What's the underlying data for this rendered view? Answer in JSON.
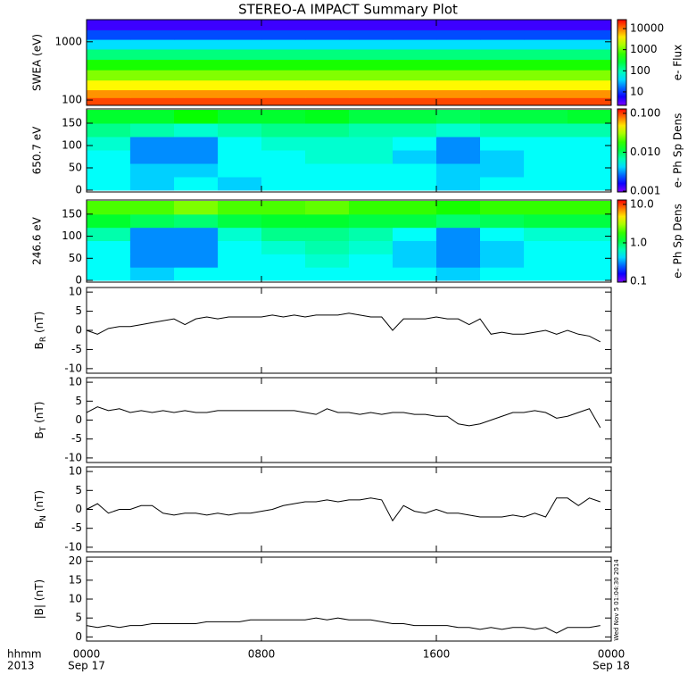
{
  "title": "STEREO-A IMPACT Summary Plot",
  "timestamp": "Wed Nov  5 01:04:30 2014",
  "x_axis": {
    "xlim": [
      0,
      24
    ],
    "xticks": [
      {
        "value": 0,
        "label": "0000"
      },
      {
        "value": 8,
        "label": "0800"
      },
      {
        "value": 16,
        "label": "1600"
      },
      {
        "value": 24,
        "label": "0000"
      }
    ],
    "dates": [
      "Sep 17",
      "Sep 18"
    ],
    "unit_label": "hhmm",
    "year": "2013"
  },
  "chart_data": [
    {
      "type": "heatmap",
      "ylabel": "SWEA (eV)",
      "zlabel": "e- Flux",
      "log_y": true,
      "log_z": true,
      "ylim": [
        81,
        2400
      ],
      "yticks": [
        100,
        1000
      ],
      "zlim": [
        2.3,
        26600
      ],
      "zticks": [
        10,
        100,
        1000,
        10000
      ],
      "xbins": [
        0,
        2,
        4,
        6,
        8,
        10,
        12,
        14,
        16,
        18,
        20,
        22,
        24
      ],
      "ybins": [
        81,
        110,
        150,
        220,
        330,
        500,
        750,
        1100,
        1600,
        2400
      ],
      "z": [
        [
          15000,
          15000,
          15000,
          15000,
          15000,
          15000,
          15000,
          15000,
          15000,
          15000,
          15000,
          15000
        ],
        [
          8000,
          8000,
          8000,
          8000,
          8000,
          8000,
          8000,
          8000,
          8000,
          8000,
          8000,
          8000
        ],
        [
          3500,
          3500,
          3500,
          3500,
          3500,
          3500,
          3500,
          3500,
          3500,
          3500,
          3500,
          3500
        ],
        [
          1200,
          1200,
          1200,
          1200,
          1200,
          1200,
          1200,
          1200,
          1200,
          1200,
          1200,
          1200
        ],
        [
          500,
          500,
          500,
          500,
          500,
          500,
          500,
          500,
          500,
          500,
          500,
          500
        ],
        [
          150,
          150,
          150,
          150,
          150,
          150,
          150,
          150,
          150,
          150,
          150,
          150
        ],
        [
          40,
          40,
          40,
          40,
          40,
          40,
          40,
          40,
          40,
          40,
          40,
          40
        ],
        [
          12,
          12,
          12,
          12,
          12,
          12,
          12,
          12,
          12,
          12,
          12,
          12
        ],
        [
          4,
          4,
          4,
          4,
          4,
          4,
          4,
          4,
          4,
          4,
          4,
          4
        ]
      ]
    },
    {
      "type": "heatmap",
      "ylabel": "650.7 eV",
      "zlabel": "e- Ph Sp Dens",
      "log_y": false,
      "log_z": true,
      "ylim": [
        -4,
        182
      ],
      "yticks": [
        0,
        50,
        100,
        150
      ],
      "zlim": [
        0.00095,
        0.13
      ],
      "zticks": [
        {
          "value": 0.001,
          "label": "0.001"
        },
        {
          "value": 0.01,
          "label": "0.010"
        },
        {
          "value": 0.1,
          "label": "0.100"
        }
      ],
      "xbins": [
        0,
        2,
        4,
        6,
        8,
        10,
        12,
        14,
        16,
        18,
        20,
        22,
        24
      ],
      "ybins": [
        0,
        30,
        60,
        90,
        120,
        150,
        180
      ],
      "z": [
        [
          0.005,
          0.004,
          0.005,
          0.004,
          0.005,
          0.005,
          0.005,
          0.005,
          0.004,
          0.005,
          0.005,
          0.005
        ],
        [
          0.005,
          0.004,
          0.004,
          0.005,
          0.005,
          0.005,
          0.005,
          0.005,
          0.004,
          0.004,
          0.005,
          0.005
        ],
        [
          0.005,
          0.003,
          0.003,
          0.005,
          0.005,
          0.006,
          0.006,
          0.004,
          0.003,
          0.004,
          0.005,
          0.005
        ],
        [
          0.006,
          0.003,
          0.003,
          0.005,
          0.006,
          0.006,
          0.006,
          0.005,
          0.003,
          0.005,
          0.005,
          0.005
        ],
        [
          0.008,
          0.007,
          0.006,
          0.007,
          0.008,
          0.008,
          0.007,
          0.007,
          0.006,
          0.007,
          0.007,
          0.007
        ],
        [
          0.012,
          0.012,
          0.015,
          0.012,
          0.012,
          0.013,
          0.011,
          0.011,
          0.01,
          0.011,
          0.011,
          0.012
        ]
      ]
    },
    {
      "type": "heatmap",
      "ylabel": "246.6 eV",
      "zlabel": "e- Ph Sp Dens",
      "log_y": false,
      "log_z": true,
      "ylim": [
        -4,
        182
      ],
      "yticks": [
        0,
        50,
        100,
        150
      ],
      "zlim": [
        0.095,
        13
      ],
      "zticks": [
        {
          "value": 0.1,
          "label": "0.1"
        },
        {
          "value": 1,
          "label": "1.0"
        },
        {
          "value": 10,
          "label": "10.0"
        }
      ],
      "xbins": [
        0,
        2,
        4,
        6,
        8,
        10,
        12,
        14,
        16,
        18,
        20,
        22,
        24
      ],
      "ybins": [
        0,
        30,
        60,
        90,
        120,
        150,
        180
      ],
      "z": [
        [
          0.5,
          0.4,
          0.5,
          0.5,
          0.5,
          0.5,
          0.5,
          0.5,
          0.4,
          0.5,
          0.5,
          0.5
        ],
        [
          0.5,
          0.3,
          0.3,
          0.5,
          0.5,
          0.6,
          0.5,
          0.4,
          0.3,
          0.4,
          0.5,
          0.5
        ],
        [
          0.5,
          0.3,
          0.3,
          0.5,
          0.6,
          0.7,
          0.6,
          0.4,
          0.3,
          0.4,
          0.5,
          0.5
        ],
        [
          0.7,
          0.3,
          0.3,
          0.6,
          0.8,
          0.8,
          0.7,
          0.5,
          0.3,
          0.5,
          0.6,
          0.6
        ],
        [
          1.2,
          1,
          0.9,
          1.1,
          1.2,
          1.2,
          1.1,
          1.1,
          0.9,
          1,
          1.1,
          1.1
        ],
        [
          2,
          2,
          2.5,
          2,
          2,
          2.2,
          1.8,
          1.8,
          1.6,
          1.8,
          1.8,
          1.8
        ]
      ]
    },
    {
      "type": "line",
      "ylabel": "B",
      "ylabel_sub": "R",
      "ylabel_unit": "(nT)",
      "color": "#000000",
      "ylim": [
        -11.2,
        11.2
      ],
      "yticks": [
        -10,
        -5,
        0,
        5,
        10
      ],
      "x": [
        0,
        0.5,
        1,
        1.5,
        2,
        2.5,
        3,
        3.5,
        4,
        4.5,
        5,
        5.5,
        6,
        6.5,
        7,
        7.5,
        8,
        8.5,
        9,
        9.5,
        10,
        10.5,
        11,
        11.5,
        12,
        12.5,
        13,
        13.5,
        14,
        14.5,
        15,
        15.5,
        16,
        16.5,
        17,
        17.5,
        18,
        18.5,
        19,
        19.5,
        20,
        20.5,
        21,
        21.5,
        22,
        22.5,
        23,
        23.5
      ],
      "values": [
        0,
        -1,
        0.5,
        1,
        1,
        1.5,
        2,
        2.5,
        3,
        1.5,
        3,
        3.5,
        3,
        3.5,
        3.5,
        3.5,
        3.5,
        4,
        3.5,
        4,
        3.5,
        4,
        4,
        4,
        4.5,
        4,
        3.5,
        3.5,
        0,
        3,
        3,
        3,
        3.5,
        3,
        3,
        1.5,
        3,
        -1,
        -0.5,
        -1,
        -1,
        -0.5,
        0,
        -1,
        0,
        -1,
        -1.5,
        -3
      ]
    },
    {
      "type": "line",
      "ylabel": "B",
      "ylabel_sub": "T",
      "ylabel_unit": "(nT)",
      "color": "#000000",
      "ylim": [
        -11.2,
        11.2
      ],
      "yticks": [
        -10,
        -5,
        0,
        5,
        10
      ],
      "x": [
        0,
        0.5,
        1,
        1.5,
        2,
        2.5,
        3,
        3.5,
        4,
        4.5,
        5,
        5.5,
        6,
        6.5,
        7,
        7.5,
        8,
        8.5,
        9,
        9.5,
        10,
        10.5,
        11,
        11.5,
        12,
        12.5,
        13,
        13.5,
        14,
        14.5,
        15,
        15.5,
        16,
        16.5,
        17,
        17.5,
        18,
        18.5,
        19,
        19.5,
        20,
        20.5,
        21,
        21.5,
        22,
        22.5,
        23,
        23.5
      ],
      "values": [
        2,
        3.5,
        2.5,
        3,
        2,
        2.5,
        2,
        2.5,
        2,
        2.5,
        2,
        2,
        2.5,
        2.5,
        2.5,
        2.5,
        2.5,
        2.5,
        2.5,
        2.5,
        2,
        1.5,
        3,
        2,
        2,
        1.5,
        2,
        1.5,
        2,
        2,
        1.5,
        1.5,
        1,
        1,
        -1,
        -1.5,
        -1,
        0,
        1,
        2,
        2,
        2.5,
        2,
        0.5,
        1,
        2,
        3,
        -2
      ]
    },
    {
      "type": "line",
      "ylabel": "B",
      "ylabel_sub": "N",
      "ylabel_unit": "(nT)",
      "color": "#000000",
      "ylim": [
        -11.2,
        11.2
      ],
      "yticks": [
        -10,
        -5,
        0,
        5,
        10
      ],
      "x": [
        0,
        0.5,
        1,
        1.5,
        2,
        2.5,
        3,
        3.5,
        4,
        4.5,
        5,
        5.5,
        6,
        6.5,
        7,
        7.5,
        8,
        8.5,
        9,
        9.5,
        10,
        10.5,
        11,
        11.5,
        12,
        12.5,
        13,
        13.5,
        14,
        14.5,
        15,
        15.5,
        16,
        16.5,
        17,
        17.5,
        18,
        18.5,
        19,
        19.5,
        20,
        20.5,
        21,
        21.5,
        22,
        22.5,
        23,
        23.5
      ],
      "values": [
        0,
        1.5,
        -1,
        0,
        0,
        1,
        1,
        -1,
        -1.5,
        -1,
        -1,
        -1.5,
        -1,
        -1.5,
        -1,
        -1,
        -0.5,
        0,
        1,
        1.5,
        2,
        2,
        2.5,
        2,
        2.5,
        2.5,
        3,
        2.5,
        -3,
        1,
        -0.5,
        -1,
        0,
        -1,
        -1,
        -1.5,
        -2,
        -2,
        -2,
        -1.5,
        -2,
        -1,
        -2,
        3,
        3,
        1,
        3,
        2
      ]
    },
    {
      "type": "line",
      "ylabel": "|B|",
      "ylabel_unit": "(nT)",
      "color": "#000000",
      "ylim": [
        -1.1,
        21.1
      ],
      "yticks": [
        0,
        5,
        10,
        15,
        20
      ],
      "x": [
        0,
        0.5,
        1,
        1.5,
        2,
        2.5,
        3,
        3.5,
        4,
        4.5,
        5,
        5.5,
        6,
        6.5,
        7,
        7.5,
        8,
        8.5,
        9,
        9.5,
        10,
        10.5,
        11,
        11.5,
        12,
        12.5,
        13,
        13.5,
        14,
        14.5,
        15,
        15.5,
        16,
        16.5,
        17,
        17.5,
        18,
        18.5,
        19,
        19.5,
        20,
        20.5,
        21,
        21.5,
        22,
        22.5,
        23,
        23.5
      ],
      "values": [
        3,
        2.5,
        3,
        2.5,
        3,
        3,
        3.5,
        3.5,
        3.5,
        3.5,
        3.5,
        4,
        4,
        4,
        4,
        4.5,
        4.5,
        4.5,
        4.5,
        4.5,
        4.5,
        5,
        4.5,
        5,
        4.5,
        4.5,
        4.5,
        4,
        3.5,
        3.5,
        3,
        3,
        3,
        3,
        2.5,
        2.5,
        2,
        2.5,
        2,
        2.5,
        2.5,
        2,
        2.5,
        1,
        2.5,
        2.5,
        2.5,
        3
      ]
    }
  ]
}
